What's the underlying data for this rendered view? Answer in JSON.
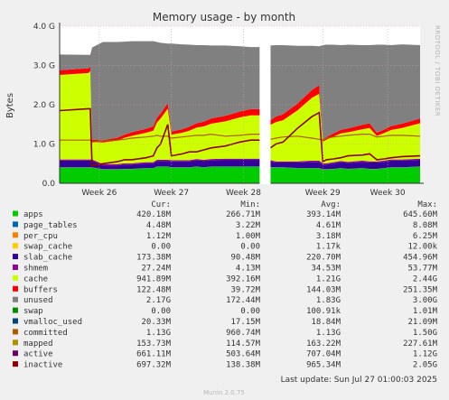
{
  "title": "Memory usage - by month",
  "ylabel": "Bytes",
  "side_label": "RRDTOOL / TOBI OETIKER",
  "footer": "Last update: Sun Jul 27 01:00:03 2025",
  "version": "Munin 2.0.75",
  "columns": [
    "Cur:",
    "Min:",
    "Avg:",
    "Max:"
  ],
  "chart_data": {
    "type": "area",
    "stacked": true,
    "ylim": [
      0,
      4
    ],
    "y_unit": "G",
    "y_ticks": [
      "0.0",
      "1.0 G",
      "2.0 G",
      "3.0 G",
      "4.0 G"
    ],
    "x_ticks": [
      "Week 26",
      "Week 27",
      "Week 28",
      "Week 29",
      "Week 30"
    ],
    "x_tick_pos": [
      0.11,
      0.31,
      0.51,
      0.73,
      0.91
    ],
    "gap": [
      0.555,
      0.585
    ],
    "x": [
      0.0,
      0.08,
      0.085,
      0.09,
      0.12,
      0.16,
      0.18,
      0.2,
      0.24,
      0.26,
      0.27,
      0.28,
      0.3,
      0.31,
      0.34,
      0.36,
      0.38,
      0.4,
      0.42,
      0.46,
      0.5,
      0.53,
      0.555,
      0.585,
      0.6,
      0.62,
      0.66,
      0.7,
      0.72,
      0.73,
      0.74,
      0.76,
      0.78,
      0.8,
      0.84,
      0.86,
      0.88,
      0.9,
      0.92,
      0.95,
      1.0
    ],
    "series": [
      {
        "name": "apps",
        "color": "#00cc00",
        "cur": "420.18M",
        "min": "266.71M",
        "avg": "393.14M",
        "max": "645.60M",
        "values": [
          0.4,
          0.4,
          0.4,
          0.4,
          0.35,
          0.35,
          0.36,
          0.36,
          0.38,
          0.38,
          0.42,
          0.42,
          0.42,
          0.4,
          0.4,
          0.4,
          0.42,
          0.4,
          0.42,
          0.42,
          0.42,
          0.42,
          0.42,
          0.4,
          0.4,
          0.4,
          0.38,
          0.38,
          0.38,
          0.35,
          0.35,
          0.36,
          0.38,
          0.36,
          0.38,
          0.36,
          0.36,
          0.38,
          0.4,
          0.4,
          0.42
        ]
      },
      {
        "name": "page_tables",
        "color": "#0066b3",
        "cur": "4.48M",
        "min": "3.22M",
        "avg": "4.61M",
        "max": "8.08M",
        "values": [
          0.005,
          0.005,
          0.005,
          0.005,
          0.005,
          0.005,
          0.005,
          0.005,
          0.005,
          0.005,
          0.005,
          0.005,
          0.005,
          0.005,
          0.005,
          0.005,
          0.005,
          0.005,
          0.005,
          0.005,
          0.005,
          0.005,
          0.005,
          0.005,
          0.005,
          0.005,
          0.005,
          0.005,
          0.005,
          0.005,
          0.005,
          0.005,
          0.005,
          0.005,
          0.005,
          0.005,
          0.005,
          0.005,
          0.005,
          0.005,
          0.005
        ]
      },
      {
        "name": "per_cpu",
        "color": "#ff8000",
        "cur": "1.12M",
        "min": "1.00M",
        "avg": "3.18M",
        "max": "6.25M",
        "values": [
          0.003,
          0.003,
          0.003,
          0.003,
          0.003,
          0.003,
          0.003,
          0.003,
          0.003,
          0.003,
          0.003,
          0.003,
          0.003,
          0.003,
          0.003,
          0.003,
          0.003,
          0.003,
          0.003,
          0.003,
          0.003,
          0.003,
          0.003,
          0.003,
          0.003,
          0.003,
          0.003,
          0.003,
          0.003,
          0.003,
          0.003,
          0.003,
          0.003,
          0.003,
          0.003,
          0.003,
          0.003,
          0.003,
          0.003,
          0.003,
          0.003
        ]
      },
      {
        "name": "swap_cache",
        "color": "#ffcc00",
        "cur": "0.00",
        "min": "0.00",
        "avg": "1.17k",
        "max": "12.00k",
        "values": [
          0,
          0,
          0,
          0,
          0,
          0,
          0,
          0,
          0,
          0,
          0,
          0,
          0,
          0,
          0,
          0,
          0,
          0,
          0,
          0,
          0,
          0,
          0,
          0,
          0,
          0,
          0,
          0,
          0,
          0,
          0,
          0,
          0,
          0,
          0,
          0,
          0,
          0,
          0,
          0,
          0
        ]
      },
      {
        "name": "slab_cache",
        "color": "#330099",
        "cur": "173.38M",
        "min": "90.48M",
        "avg": "220.70M",
        "max": "454.96M",
        "values": [
          0.17,
          0.17,
          0.17,
          0.17,
          0.1,
          0.1,
          0.11,
          0.11,
          0.12,
          0.12,
          0.14,
          0.14,
          0.14,
          0.15,
          0.15,
          0.15,
          0.16,
          0.16,
          0.16,
          0.17,
          0.17,
          0.17,
          0.17,
          0.15,
          0.12,
          0.12,
          0.14,
          0.16,
          0.16,
          0.12,
          0.12,
          0.14,
          0.15,
          0.15,
          0.16,
          0.16,
          0.16,
          0.16,
          0.17,
          0.17,
          0.17
        ]
      },
      {
        "name": "shmem",
        "color": "#990099",
        "cur": "27.24M",
        "min": "4.13M",
        "avg": "34.53M",
        "max": "53.77M",
        "values": [
          0.03,
          0.03,
          0.03,
          0.03,
          0.03,
          0.03,
          0.03,
          0.03,
          0.03,
          0.03,
          0.03,
          0.03,
          0.03,
          0.03,
          0.03,
          0.03,
          0.03,
          0.03,
          0.03,
          0.03,
          0.03,
          0.03,
          0.03,
          0.03,
          0.03,
          0.03,
          0.03,
          0.03,
          0.03,
          0.03,
          0.03,
          0.03,
          0.03,
          0.03,
          0.03,
          0.03,
          0.03,
          0.03,
          0.03,
          0.03,
          0.03
        ]
      },
      {
        "name": "cache",
        "color": "#ccff00",
        "cur": "941.89M",
        "min": "392.16M",
        "avg": "1.21G",
        "max": "2.44G",
        "values": [
          2.15,
          2.2,
          2.25,
          0.45,
          0.55,
          0.6,
          0.65,
          0.7,
          0.75,
          0.8,
          0.95,
          1.05,
          1.3,
          0.65,
          0.7,
          0.75,
          0.8,
          0.85,
          0.9,
          0.95,
          1.05,
          1.1,
          1.1,
          0.9,
          1.0,
          1.05,
          1.3,
          1.6,
          1.7,
          0.55,
          0.6,
          0.65,
          0.7,
          0.75,
          0.8,
          0.85,
          0.65,
          0.7,
          0.75,
          0.8,
          0.9
        ]
      },
      {
        "name": "buffers",
        "color": "#ff0000",
        "cur": "122.48M",
        "min": "39.72M",
        "avg": "144.03M",
        "max": "251.35M",
        "values": [
          0.12,
          0.12,
          0.12,
          0.05,
          0.06,
          0.07,
          0.08,
          0.09,
          0.1,
          0.11,
          0.12,
          0.13,
          0.14,
          0.08,
          0.09,
          0.1,
          0.11,
          0.12,
          0.13,
          0.14,
          0.15,
          0.16,
          0.16,
          0.12,
          0.14,
          0.15,
          0.17,
          0.2,
          0.22,
          0.06,
          0.07,
          0.08,
          0.09,
          0.1,
          0.11,
          0.12,
          0.08,
          0.09,
          0.1,
          0.11,
          0.12
        ]
      },
      {
        "name": "unused",
        "color": "#808080",
        "cur": "2.17G",
        "min": "172.44M",
        "avg": "1.83G",
        "max": "3.00G",
        "values": [
          0.4,
          0.34,
          0.29,
          2.35,
          2.5,
          2.44,
          2.37,
          2.32,
          2.23,
          2.17,
          1.93,
          1.8,
          1.52,
          2.24,
          2.16,
          2.09,
          1.99,
          1.95,
          1.86,
          1.79,
          1.66,
          1.58,
          1.58,
          1.9,
          1.82,
          1.76,
          1.47,
          1.12,
          0.99,
          2.4,
          2.35,
          2.26,
          2.16,
          2.13,
          2.03,
          1.99,
          2.24,
          2.16,
          2.06,
          2.02,
          1.87
        ]
      },
      {
        "name": "swap",
        "color": "#008f00",
        "cur": "0.00",
        "min": "0.00",
        "avg": "100.91k",
        "max": "1.01M"
      },
      {
        "name": "vmalloc_used",
        "color": "#00487d",
        "cur": "20.33M",
        "min": "17.15M",
        "avg": "18.84M",
        "max": "21.09M"
      },
      {
        "name": "committed",
        "color": "#b35a00",
        "cur": "1.13G",
        "min": "960.74M",
        "avg": "1.13G",
        "max": "1.50G",
        "values": [
          1.1,
          1.1,
          1.1,
          1.05,
          1.08,
          1.1,
          1.12,
          1.15,
          1.18,
          1.2,
          1.22,
          1.2,
          1.2,
          1.15,
          1.18,
          1.2,
          1.22,
          1.22,
          1.25,
          1.2,
          1.22,
          1.25,
          1.25,
          1.12,
          1.15,
          1.18,
          1.2,
          1.15,
          1.12,
          1.1,
          1.15,
          1.18,
          1.2,
          1.22,
          1.25,
          1.25,
          1.18,
          1.2,
          1.22,
          1.22,
          1.2
        ]
      },
      {
        "name": "mapped",
        "color": "#b38f00",
        "cur": "153.73M",
        "min": "114.57M",
        "avg": "163.22M",
        "max": "227.61M"
      },
      {
        "name": "active",
        "color": "#6b006b",
        "cur": "661.11M",
        "min": "503.64M",
        "avg": "707.04M",
        "max": "1.12G"
      },
      {
        "name": "inactive",
        "color": "#8f0000",
        "cur": "697.32M",
        "min": "138.38M",
        "avg": "965.34M",
        "max": "2.05G",
        "values": [
          1.85,
          1.9,
          1.9,
          0.45,
          0.5,
          0.55,
          0.6,
          0.6,
          0.65,
          0.7,
          0.9,
          1.0,
          1.5,
          0.7,
          0.75,
          0.8,
          0.8,
          0.85,
          0.9,
          0.95,
          1.05,
          1.1,
          1.1,
          0.9,
          1.0,
          1.05,
          1.4,
          1.7,
          1.8,
          0.55,
          0.6,
          0.62,
          0.65,
          0.7,
          0.72,
          0.75,
          0.6,
          0.62,
          0.65,
          0.68,
          0.7
        ]
      }
    ]
  }
}
